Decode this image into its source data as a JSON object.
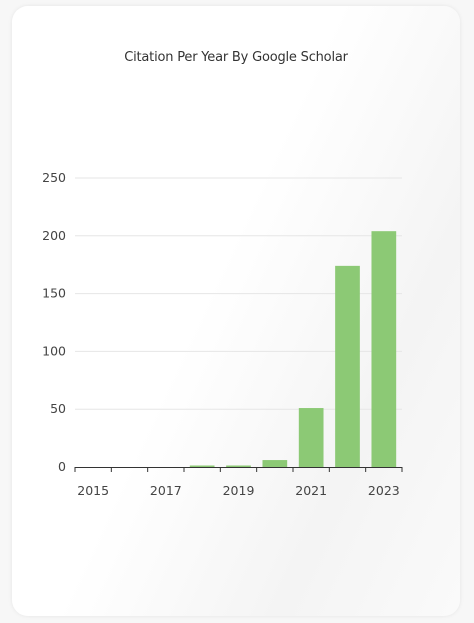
{
  "chart_data": {
    "type": "bar",
    "title": "Citation Per Year By Google Scholar",
    "categories": [
      2015,
      2016,
      2017,
      2018,
      2019,
      2020,
      2021,
      2022,
      2023
    ],
    "values": [
      0,
      0,
      0,
      1,
      1,
      6,
      51,
      174,
      204
    ],
    "xlabel": "",
    "ylabel": "",
    "ylim": [
      0,
      250
    ],
    "yticks": [
      0,
      50,
      100,
      150,
      200,
      250
    ],
    "xticks": [
      2015,
      2017,
      2019,
      2021,
      2023
    ],
    "grid": true,
    "bar_color": "#8cc975"
  }
}
